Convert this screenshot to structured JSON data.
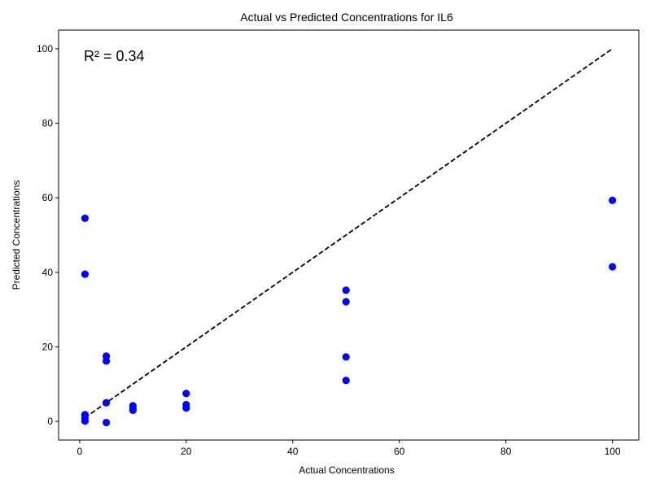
{
  "chart_data": {
    "type": "scatter",
    "title": "Actual vs Predicted Concentrations for IL6",
    "xlabel": "Actual Concentrations",
    "ylabel": "Predicted Concentrations",
    "annotation": "R² = 0.34",
    "xlim": [
      -3.95,
      104.95
    ],
    "ylim": [
      -5.0,
      105.0
    ],
    "xticks": [
      0,
      20,
      40,
      60,
      80,
      100
    ],
    "yticks": [
      0,
      20,
      40,
      60,
      80,
      100
    ],
    "grid": false,
    "point_color": "#0000ff",
    "reference_line": {
      "x": [
        1,
        100
      ],
      "y": [
        1,
        100
      ],
      "style": "dashed",
      "color": "#000000"
    },
    "points": [
      {
        "x": 1,
        "y": 54.5
      },
      {
        "x": 1,
        "y": 39.5
      },
      {
        "x": 1,
        "y": 1.8
      },
      {
        "x": 1,
        "y": 0.9
      },
      {
        "x": 1,
        "y": 0.1
      },
      {
        "x": 5,
        "y": 17.5
      },
      {
        "x": 5,
        "y": 16.2
      },
      {
        "x": 5,
        "y": 5.0
      },
      {
        "x": 5,
        "y": -0.3
      },
      {
        "x": 10,
        "y": 4.2
      },
      {
        "x": 10,
        "y": 3.5
      },
      {
        "x": 10,
        "y": 3.0
      },
      {
        "x": 20,
        "y": 7.5
      },
      {
        "x": 20,
        "y": 4.5
      },
      {
        "x": 20,
        "y": 3.6
      },
      {
        "x": 50,
        "y": 35.2
      },
      {
        "x": 50,
        "y": 32.1
      },
      {
        "x": 50,
        "y": 17.3
      },
      {
        "x": 50,
        "y": 11.0
      },
      {
        "x": 100,
        "y": 59.3
      },
      {
        "x": 100,
        "y": 41.5
      }
    ]
  }
}
